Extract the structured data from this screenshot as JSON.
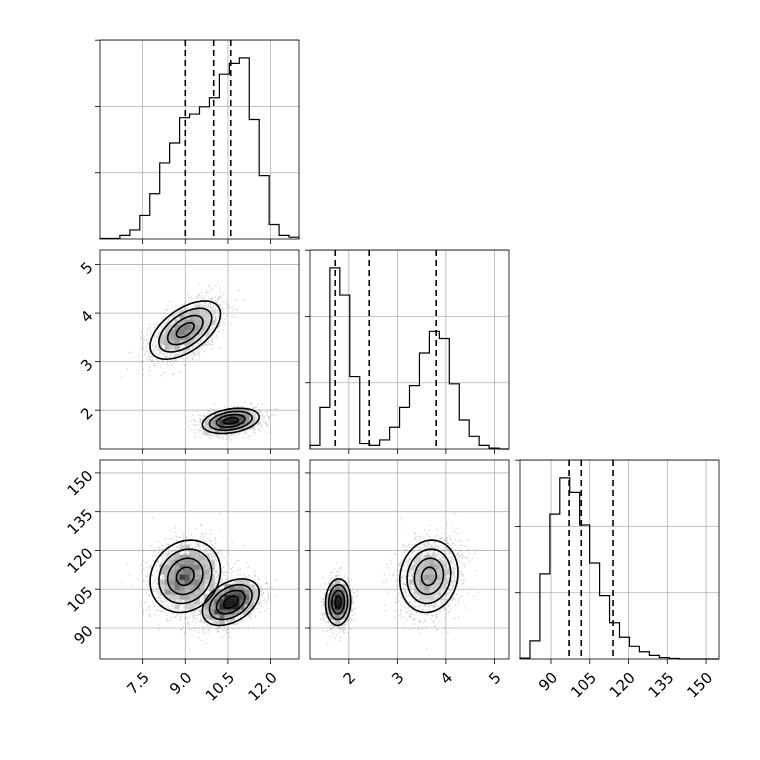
{
  "chart_data": {
    "type": "corner",
    "parameters": [
      "",
      "",
      ""
    ],
    "grid": true,
    "ranges": [
      [
        6.0,
        13.0
      ],
      [
        1.2,
        5.3
      ],
      [
        78,
        155
      ]
    ],
    "ticks": [
      {
        "values": [
          7.5,
          9.0,
          10.5,
          12.0
        ],
        "labels": [
          "7.5",
          "9.0",
          "10.5",
          "12.0"
        ]
      },
      {
        "values": [
          2,
          3,
          4,
          5
        ],
        "labels": [
          "2",
          "3",
          "4",
          "5"
        ]
      },
      {
        "values": [
          90,
          105,
          120,
          135,
          150
        ],
        "labels": [
          "90",
          "105",
          "120",
          "135",
          "150"
        ]
      }
    ],
    "hist_bins": 20,
    "histograms": [
      [
        0.003,
        0.003,
        0.02,
        0.05,
        0.13,
        0.25,
        0.42,
        0.53,
        0.67,
        0.69,
        0.73,
        0.78,
        0.91,
        0.97,
        1.0,
        0.66,
        0.35,
        0.08,
        0.02,
        0.01
      ],
      [
        0.02,
        0.23,
        1.0,
        0.85,
        0.4,
        0.03,
        0.02,
        0.05,
        0.12,
        0.23,
        0.35,
        0.53,
        0.65,
        0.61,
        0.36,
        0.16,
        0.07,
        0.02,
        0.005,
        0.0
      ],
      [
        0.005,
        0.1,
        0.47,
        0.8,
        1.0,
        0.92,
        0.74,
        0.53,
        0.35,
        0.2,
        0.12,
        0.07,
        0.04,
        0.02,
        0.008,
        0.003,
        0.0,
        0.0,
        0.0,
        0.0
      ]
    ],
    "quantiles": [
      [
        9.0,
        10.0,
        10.6
      ],
      [
        1.72,
        2.42,
        3.8
      ],
      [
        97.0,
        101.7,
        114.0
      ]
    ],
    "modes": [
      {
        "x1": [
          9.0,
          0.62
        ],
        "x2": [
          3.65,
          0.3
        ],
        "x3": [
          110,
          7.0
        ],
        "rho12": 0.55,
        "rho13": 0.15,
        "rho23": 0.1,
        "weight": 0.55
      },
      {
        "x1": [
          10.6,
          0.5
        ],
        "x2": [
          1.78,
          0.13
        ],
        "x3": [
          100,
          4.5
        ],
        "rho12": 0.3,
        "rho13": 0.4,
        "rho23": 0.05,
        "weight": 0.45
      }
    ]
  }
}
